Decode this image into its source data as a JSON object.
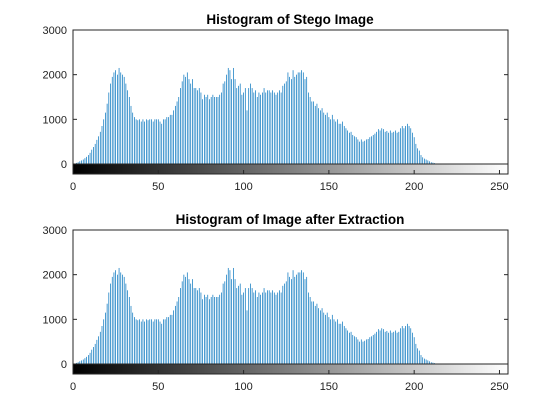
{
  "figure": {
    "window_title": ""
  },
  "chart_data": [
    {
      "type": "bar",
      "title": "Histogram of Stego Image",
      "xlabel": "",
      "ylabel": "",
      "xlim": [
        0,
        255
      ],
      "ylim": [
        0,
        3000
      ],
      "x_ticks": [
        "0",
        "50",
        "100",
        "150",
        "200",
        "250"
      ],
      "y_ticks": [
        "0",
        "1000",
        "2000",
        "3000"
      ],
      "bar_color": "#0072BD",
      "colorbar": "grayscale 0-255",
      "grid": false,
      "x": "0..255",
      "values": [
        0,
        10,
        25,
        40,
        60,
        80,
        100,
        130,
        160,
        200,
        250,
        320,
        380,
        450,
        540,
        620,
        720,
        850,
        1000,
        1150,
        1350,
        1600,
        1800,
        1950,
        2050,
        2100,
        2000,
        2150,
        2050,
        2000,
        1950,
        1800,
        1650,
        1500,
        1300,
        1150,
        1050,
        1000,
        980,
        1000,
        950,
        1000,
        950,
        1000,
        980,
        1000,
        1000,
        950,
        1000,
        1000,
        1000,
        950,
        900,
        1000,
        1000,
        1050,
        1050,
        1100,
        1100,
        1200,
        1300,
        1400,
        1500,
        1700,
        1850,
        2000,
        1950,
        2050,
        1900,
        1800,
        1900,
        1700,
        1700,
        1650,
        1700,
        1600,
        1450,
        1550,
        1500,
        1550,
        1450,
        1500,
        1550,
        1500,
        1500,
        1500,
        1550,
        1600,
        1800,
        1850,
        2000,
        2150,
        2100,
        1900,
        2150,
        1900,
        1700,
        1750,
        1800,
        1550,
        1600,
        1700,
        1200,
        1700,
        1800,
        1700,
        1600,
        1650,
        1500,
        1600,
        1550,
        1600,
        1700,
        1600,
        1650,
        1650,
        1600,
        1650,
        1600,
        1550,
        1600,
        1650,
        1600,
        1750,
        1800,
        1850,
        2050,
        1950,
        1900,
        2100,
        1950,
        2000,
        2050,
        2050,
        2100,
        2050,
        1900,
        1950,
        1600,
        1500,
        1400,
        1400,
        1300,
        1350,
        1250,
        1200,
        1250,
        1150,
        1100,
        1150,
        1050,
        1000,
        1100,
        1000,
        950,
        1000,
        900,
        900,
        950,
        850,
        800,
        750,
        700,
        720,
        650,
        620,
        600,
        550,
        500,
        550,
        500,
        520,
        550,
        560,
        600,
        620,
        650,
        680,
        720,
        780,
        750,
        800,
        780,
        720,
        740,
        700,
        750,
        700,
        720,
        750,
        700,
        720,
        800,
        850,
        800,
        850,
        900,
        850,
        800,
        700,
        600,
        450,
        350,
        300,
        200,
        150,
        120,
        100,
        80,
        60,
        40,
        30,
        20,
        10,
        5,
        2,
        0,
        0,
        0,
        0,
        0,
        0,
        0,
        0,
        0,
        0,
        0,
        0,
        0,
        0,
        0,
        0,
        0,
        0,
        0,
        0,
        0,
        0,
        0,
        0,
        0,
        0,
        0,
        0,
        0,
        0,
        0,
        0
      ]
    },
    {
      "type": "bar",
      "title": "Histogram of Image after Extraction",
      "xlabel": "",
      "ylabel": "",
      "xlim": [
        0,
        255
      ],
      "ylim": [
        0,
        3000
      ],
      "x_ticks": [
        "0",
        "50",
        "100",
        "150",
        "200",
        "250"
      ],
      "y_ticks": [
        "0",
        "1000",
        "2000",
        "3000"
      ],
      "bar_color": "#0072BD",
      "colorbar": "grayscale 0-255",
      "grid": false,
      "x": "0..255",
      "values": [
        0,
        10,
        25,
        40,
        60,
        80,
        100,
        130,
        160,
        200,
        250,
        320,
        380,
        450,
        540,
        620,
        720,
        850,
        1000,
        1150,
        1350,
        1600,
        1800,
        1950,
        2050,
        2100,
        2000,
        2150,
        2050,
        2000,
        1950,
        1800,
        1650,
        1500,
        1300,
        1150,
        1050,
        1000,
        980,
        1000,
        950,
        1000,
        950,
        1000,
        980,
        1000,
        1000,
        950,
        1000,
        1000,
        1000,
        950,
        900,
        1000,
        1000,
        1050,
        1050,
        1100,
        1100,
        1200,
        1300,
        1400,
        1500,
        1700,
        1850,
        2000,
        1950,
        2050,
        1900,
        1800,
        1900,
        1700,
        1700,
        1650,
        1700,
        1600,
        1450,
        1550,
        1500,
        1550,
        1450,
        1500,
        1550,
        1500,
        1500,
        1500,
        1550,
        1600,
        1800,
        1850,
        2000,
        2150,
        2100,
        1900,
        2150,
        1900,
        1700,
        1750,
        1800,
        1550,
        1600,
        1700,
        1200,
        1700,
        1800,
        1700,
        1600,
        1650,
        1500,
        1600,
        1550,
        1600,
        1700,
        1600,
        1650,
        1650,
        1600,
        1650,
        1600,
        1550,
        1600,
        1650,
        1600,
        1750,
        1800,
        1850,
        2050,
        1950,
        1900,
        2100,
        1950,
        2000,
        2050,
        2050,
        2100,
        2050,
        1900,
        1950,
        1600,
        1500,
        1400,
        1400,
        1300,
        1350,
        1250,
        1200,
        1250,
        1150,
        1100,
        1150,
        1050,
        1000,
        1100,
        1000,
        950,
        1000,
        900,
        900,
        950,
        850,
        800,
        750,
        700,
        720,
        650,
        620,
        600,
        550,
        500,
        550,
        500,
        520,
        550,
        560,
        600,
        620,
        650,
        680,
        720,
        780,
        750,
        800,
        780,
        720,
        740,
        700,
        750,
        700,
        720,
        750,
        700,
        720,
        800,
        850,
        800,
        850,
        900,
        850,
        800,
        700,
        600,
        450,
        350,
        300,
        200,
        150,
        120,
        100,
        80,
        60,
        40,
        30,
        20,
        10,
        5,
        2,
        0,
        0,
        0,
        0,
        0,
        0,
        0,
        0,
        0,
        0,
        0,
        0,
        0,
        0,
        0,
        0,
        0,
        0,
        0,
        0,
        0,
        0,
        0,
        0,
        0,
        0,
        0,
        0,
        0,
        0,
        0,
        0
      ]
    }
  ]
}
